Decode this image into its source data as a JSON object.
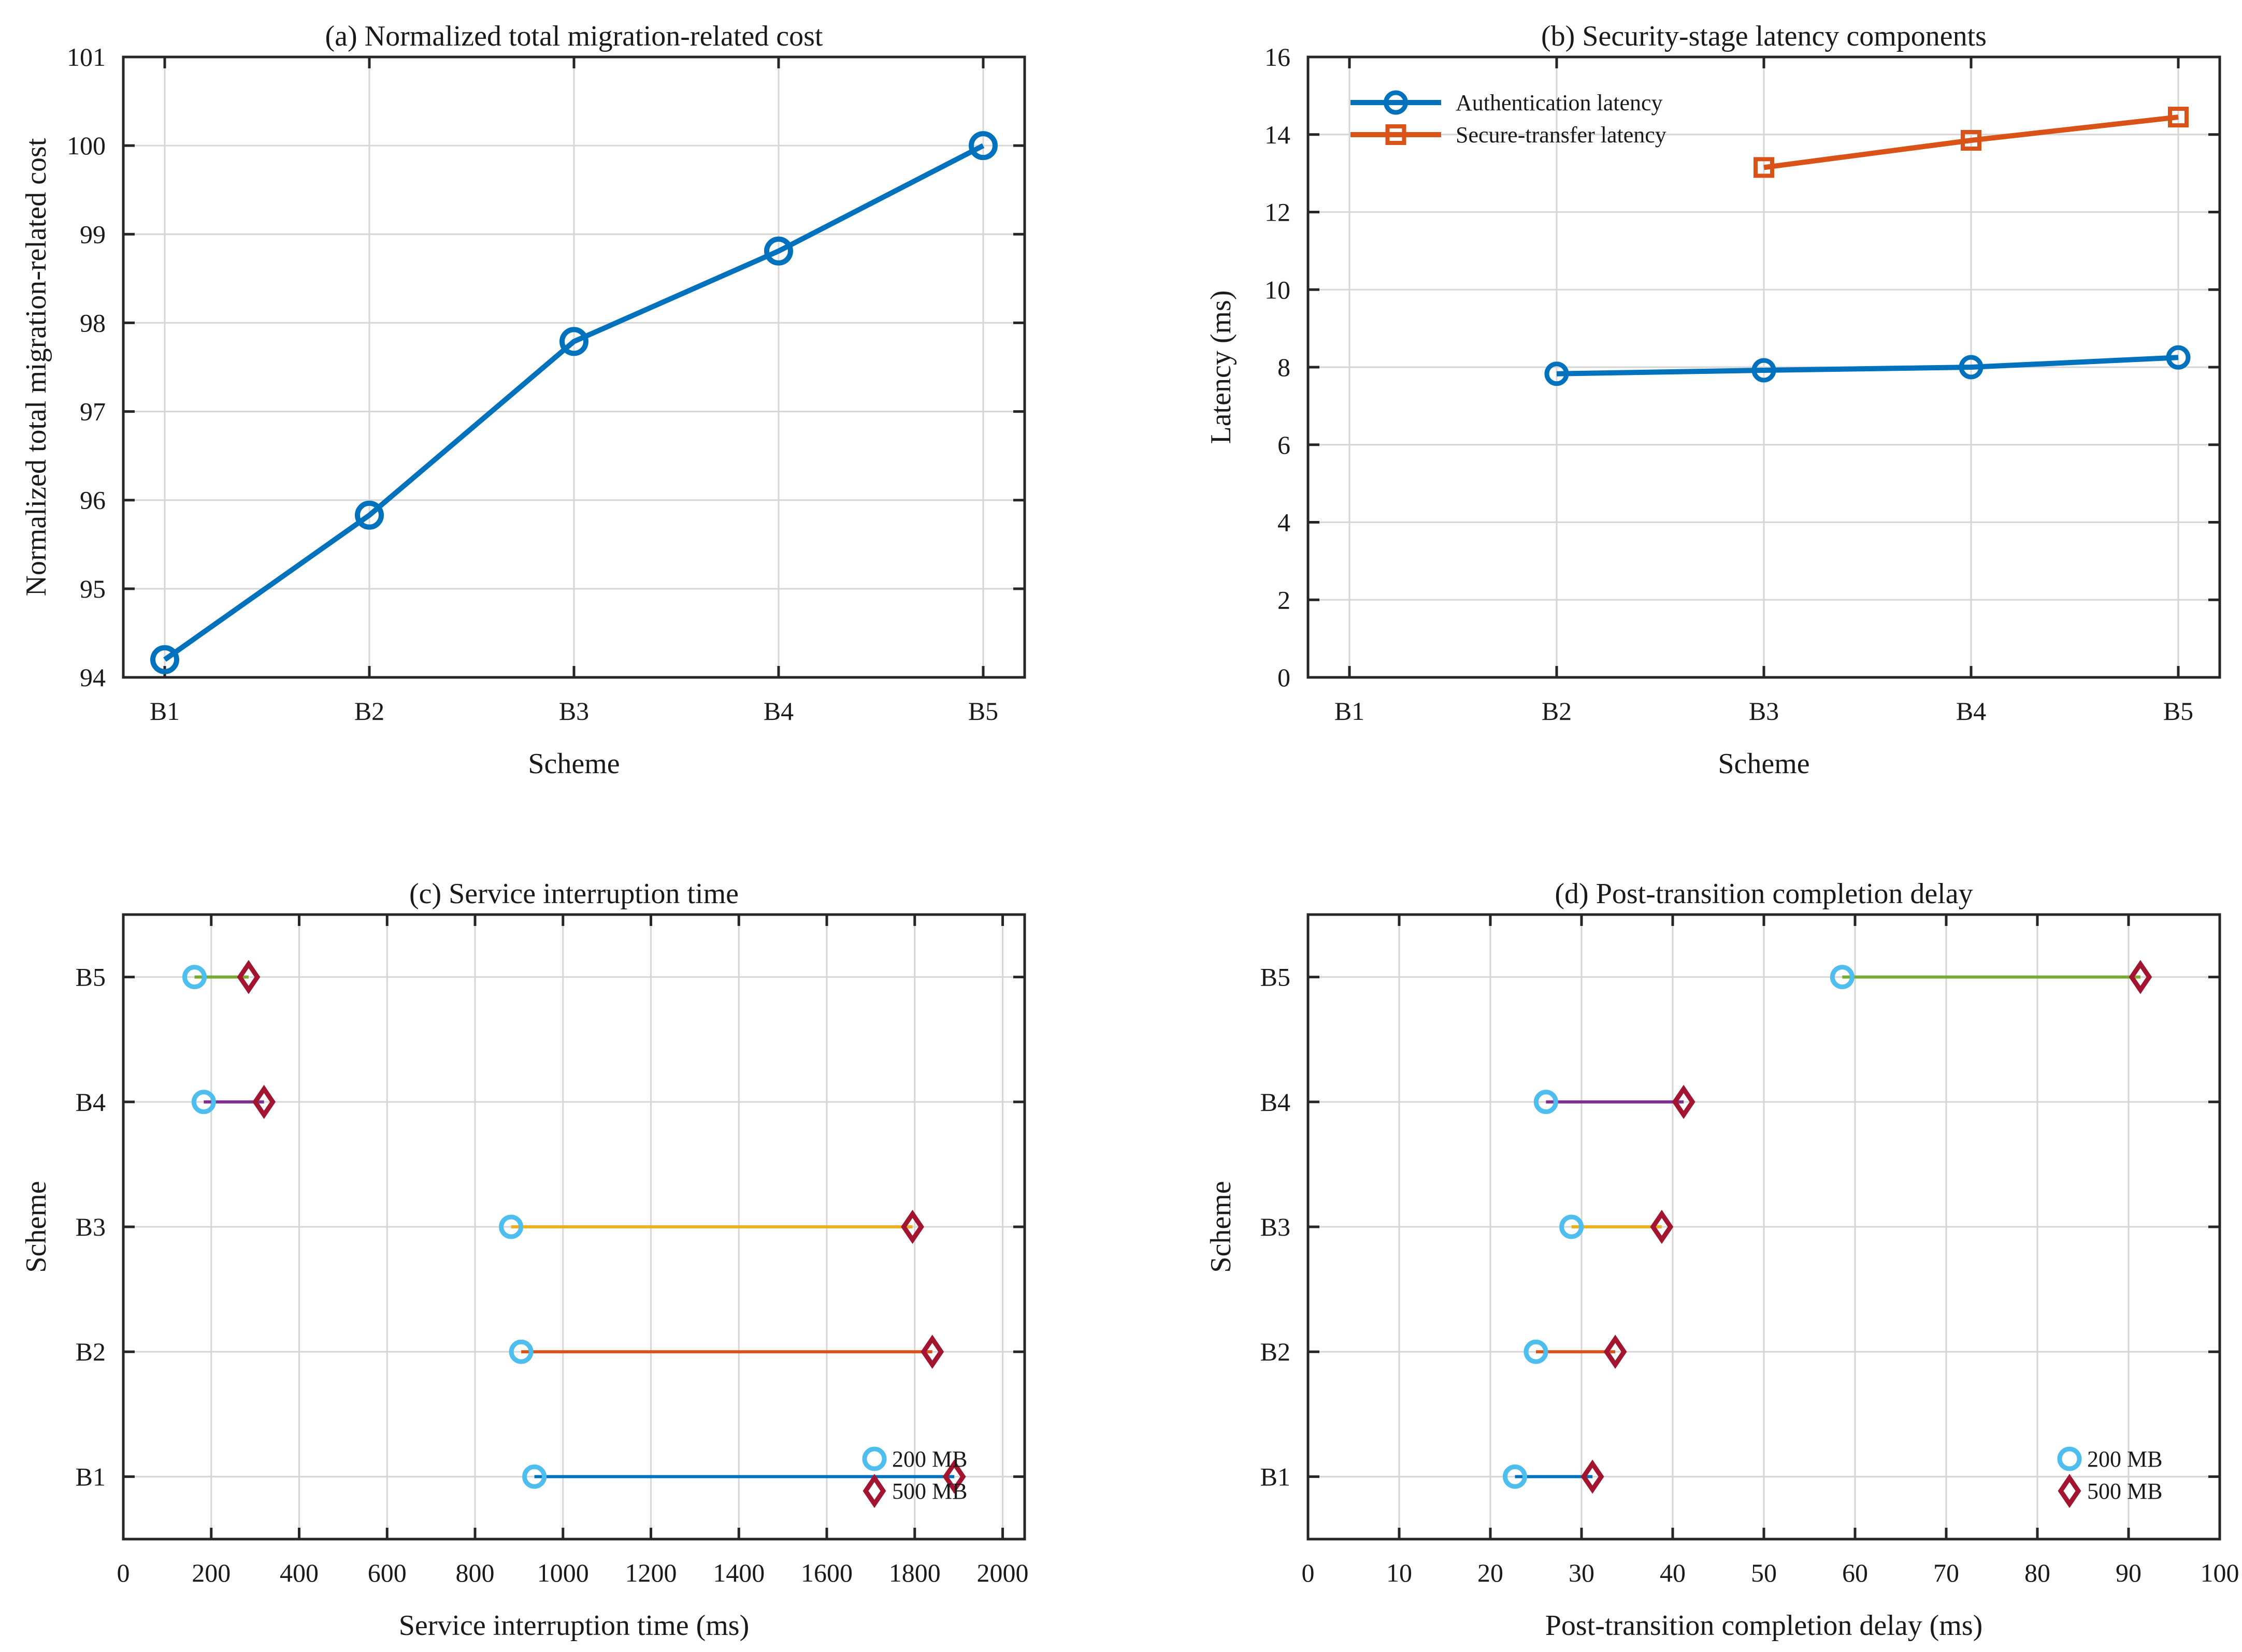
{
  "colors": {
    "blue": "#0072BD",
    "orange": "#D95319",
    "yellow": "#EDB120",
    "purple": "#7E2F8E",
    "green": "#77AC30",
    "marker200": "#4DBEEE",
    "marker500": "#A2142F",
    "grid": "#d6d6d6",
    "axis": "#262626"
  },
  "chart_data": [
    {
      "type": "line",
      "title": "(a) Normalized total migration-related cost",
      "xlabel": "Scheme",
      "ylabel": "Normalized total migration-related cost",
      "categories": [
        "B1",
        "B2",
        "B3",
        "B4",
        "B5"
      ],
      "ylim": [
        94,
        101
      ],
      "yticks": [
        94,
        95,
        96,
        97,
        98,
        99,
        100,
        101
      ],
      "grid": true,
      "series": [
        {
          "values": [
            94.2,
            95.83,
            97.79,
            98.81,
            100.0
          ]
        }
      ]
    },
    {
      "type": "line",
      "title": "(b) Security-stage latency components",
      "xlabel": "Scheme",
      "ylabel": "Latency (ms)",
      "categories": [
        "B1",
        "B2",
        "B3",
        "B4",
        "B5"
      ],
      "ylim": [
        0,
        16
      ],
      "yticks": [
        0,
        2,
        4,
        6,
        8,
        10,
        12,
        14,
        16
      ],
      "grid": true,
      "legend_position": "top-left",
      "series": [
        {
          "name": "Authentication latency",
          "values": [
            null,
            7.83,
            7.92,
            8.0,
            8.25
          ]
        },
        {
          "name": "Secure-transfer latency",
          "values": [
            null,
            null,
            13.15,
            13.85,
            14.45
          ]
        }
      ]
    },
    {
      "type": "dumbbell",
      "title": "(c) Service interruption time",
      "xlabel": "Service interruption time (ms)",
      "ylabel": "Scheme",
      "categories": [
        "B1",
        "B2",
        "B3",
        "B4",
        "B5"
      ],
      "xlim": [
        0,
        2050
      ],
      "xticks": [
        0,
        200,
        400,
        600,
        800,
        1000,
        1200,
        1400,
        1600,
        1800,
        2000
      ],
      "grid": true,
      "legend_position": "bottom-right",
      "series": [
        {
          "name": "200 MB",
          "values": [
            935,
            905,
            882,
            183,
            162
          ]
        },
        {
          "name": "500 MB",
          "values": [
            1890,
            1840,
            1795,
            320,
            285
          ]
        }
      ]
    },
    {
      "type": "dumbbell",
      "title": "(d) Post-transition completion delay",
      "xlabel": "Post-transition completion delay (ms)",
      "ylabel": "Scheme",
      "categories": [
        "B1",
        "B2",
        "B3",
        "B4",
        "B5"
      ],
      "xlim": [
        0,
        100
      ],
      "xticks": [
        0,
        10,
        20,
        30,
        40,
        50,
        60,
        70,
        80,
        90,
        100
      ],
      "grid": true,
      "legend_position": "bottom-right",
      "series": [
        {
          "name": "200 MB",
          "values": [
            22.7,
            25.0,
            28.9,
            26.1,
            58.6
          ]
        },
        {
          "name": "500 MB",
          "values": [
            31.2,
            33.7,
            38.8,
            41.2,
            91.3
          ]
        }
      ]
    }
  ]
}
